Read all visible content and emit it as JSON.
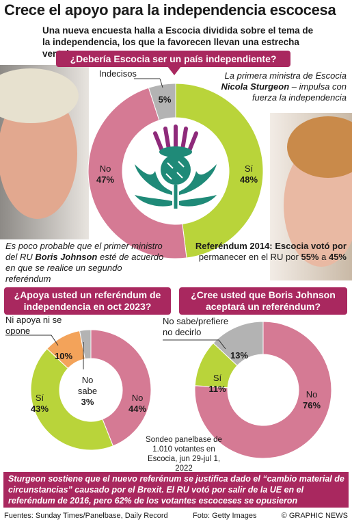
{
  "title": "Crece el apoyo para la independencia escocesa",
  "subtitle": "Una nueva encuesta halla a Escocia dividida sobre el tema de la independencia, los que la favorecen llevan una estrecha ventaja",
  "sturgeon_note": [
    "La primera ministra de Escocia",
    "Nicola Sturgeon",
    " – impulsa con fuerza la independencia"
  ],
  "johnson_note": [
    "Es poco probable que el primer ministro del RU ",
    "Boris Johnson",
    " esté de acuerdo en que se realice un segundo referéndum"
  ],
  "referendum_note": [
    "Referéndum 2014: Escocia votó por",
    " permanecer en el RU por ",
    "55%",
    " a ",
    "45%"
  ],
  "survey_note": "Sondeo panelbase de 1.010 votantes en Escocia, jun 29-jul 1, 2022",
  "bottom_note": "Sturgeon sostiene que el nuevo referénum se justifica dado el “cambio material de circunstancias” causado por el Brexit. El RU votó por salir de la UE en el referéndum de 2016, pero 62% de los votantes escoceses se opusieron",
  "sources": "Fuentes: Sunday Times/Panelbase, Daily Record",
  "photo": "Foto: Getty Images",
  "credit": "© GRAPHIC NEWS",
  "chart_data": [
    {
      "type": "pie",
      "title": "¿Debería Escocia ser un país independiente?",
      "categories": [
        "Sí",
        "No",
        "Indecisos"
      ],
      "values": [
        48,
        47,
        5
      ],
      "value_labels": [
        "48%",
        "47%",
        "5%"
      ],
      "colors": [
        "#b9d43a",
        "#d57a94",
        "#b3b3b3"
      ]
    },
    {
      "type": "pie",
      "title": "¿Apoya usted un referéndum de independencia en oct 2023?",
      "categories": [
        "No",
        "Sí",
        "Ni apoya ni se opone",
        "No sabe"
      ],
      "values": [
        44,
        43,
        10,
        3
      ],
      "value_labels": [
        "44%",
        "43%",
        "10%",
        "3%"
      ],
      "colors": [
        "#d57a94",
        "#b9d43a",
        "#f3a35a",
        "#b3b3b3"
      ]
    },
    {
      "type": "pie",
      "title": "¿Cree usted que Boris Johnson aceptará un referéndum?",
      "categories": [
        "No",
        "Sí",
        "No sabe/prefiere no decirlo"
      ],
      "values": [
        76,
        11,
        13
      ],
      "value_labels": [
        "76%",
        "11%",
        "13%"
      ],
      "colors": [
        "#d57a94",
        "#b9d43a",
        "#b3b3b3"
      ]
    }
  ]
}
